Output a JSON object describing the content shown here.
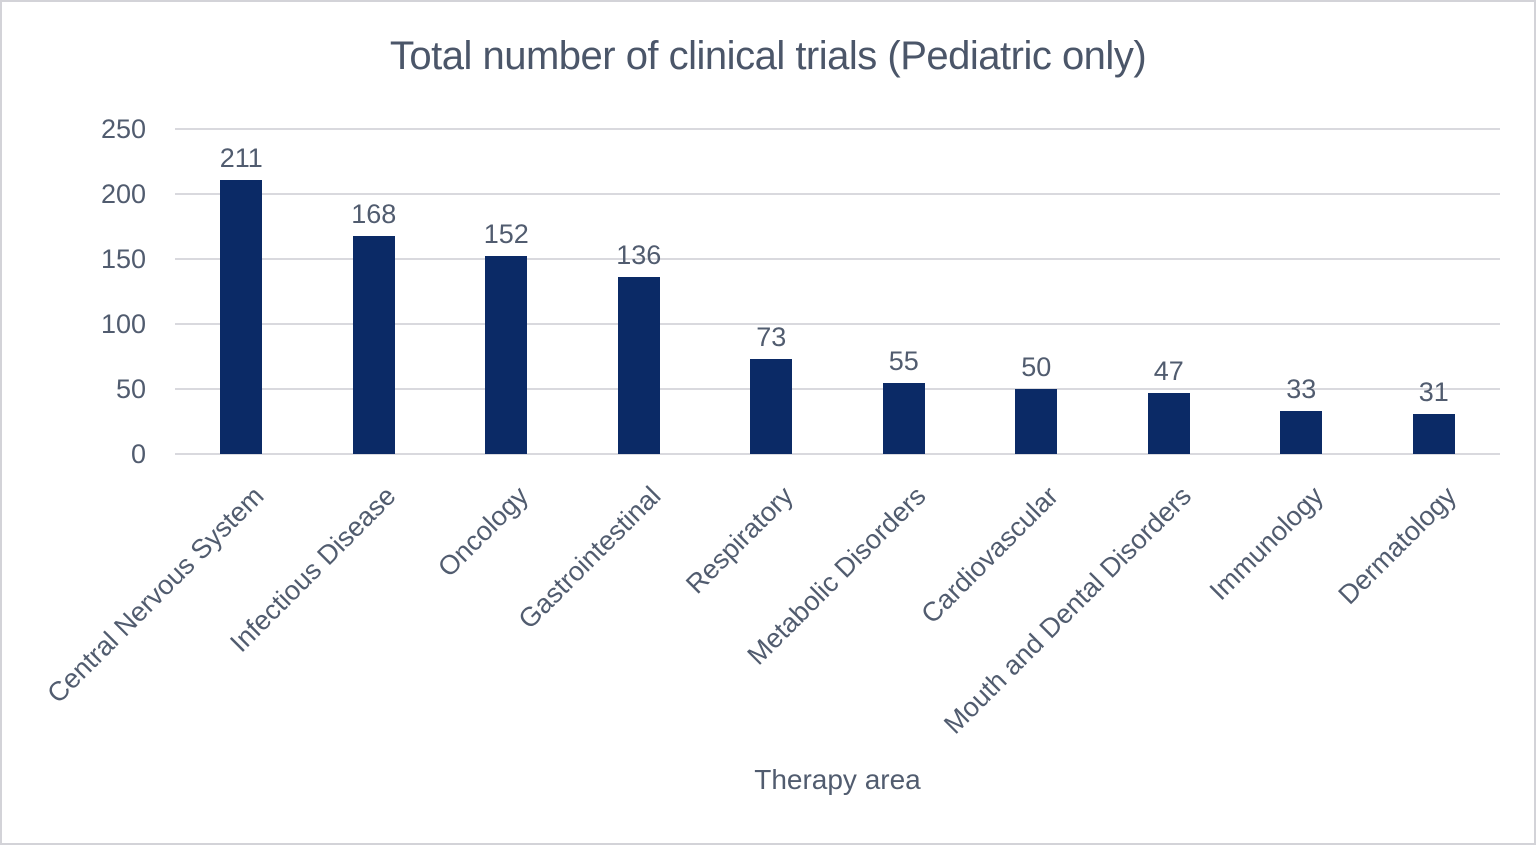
{
  "chart_data": {
    "type": "bar",
    "title": "Total number of clinical trials (Pediatric only)",
    "xlabel": "Therapy area",
    "ylabel": "",
    "categories": [
      "Central Nervous System",
      "Infectious Disease",
      "Oncology",
      "Gastrointestinal",
      "Respiratory",
      "Metabolic Disorders",
      "Cardiovascular",
      "Mouth and Dental Disorders",
      "Immunology",
      "Dermatology"
    ],
    "values": [
      211,
      168,
      152,
      136,
      73,
      55,
      50,
      47,
      33,
      31
    ],
    "ylim": [
      0,
      250
    ],
    "yticks": [
      0,
      50,
      100,
      150,
      200,
      250
    ],
    "grid": true,
    "legend": "none",
    "data_labels": true
  },
  "colors": {
    "bar": "#0b2a66",
    "text": "#515c6f",
    "title": "#4b5669",
    "gridline": "#d9d9de",
    "background": "#ffffff",
    "border": "#d3d3d8"
  }
}
